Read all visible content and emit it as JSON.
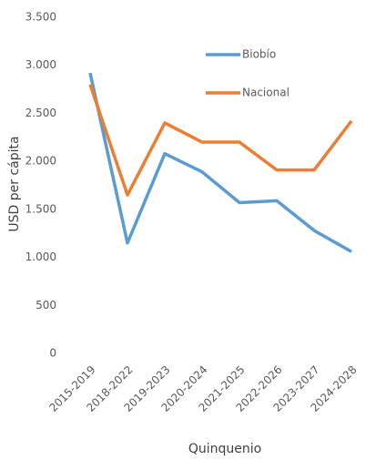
{
  "chart_data": {
    "type": "line",
    "x_label": "Quinquenio",
    "y_label": "USD per cápita",
    "categories": [
      "2015-2019",
      "2018-2022",
      "2019-2023",
      "2020-2024",
      "2021-2025",
      "2022-2026",
      "2023-2027",
      "2024-2028"
    ],
    "series": [
      {
        "name": "Biobío",
        "color": "#5b9bd5",
        "values": [
          2920,
          1150,
          2080,
          1890,
          1570,
          1590,
          1280,
          1060
        ]
      },
      {
        "name": "Nacional",
        "color": "#ed7d31",
        "values": [
          2800,
          1650,
          2400,
          2200,
          2200,
          1910,
          1910,
          2420
        ]
      }
    ],
    "ylim": [
      0,
      3500
    ],
    "yticks": [
      0,
      500,
      {
        "value": 1000,
        "label": "1.000"
      },
      {
        "value": 1500,
        "label": "1.500"
      },
      {
        "value": 2000,
        "label": "2.000"
      },
      {
        "value": 2500,
        "label": "2.500"
      },
      {
        "value": 3000,
        "label": "3.000"
      },
      {
        "value": 3500,
        "label": "3.500"
      }
    ],
    "grid": false
  }
}
